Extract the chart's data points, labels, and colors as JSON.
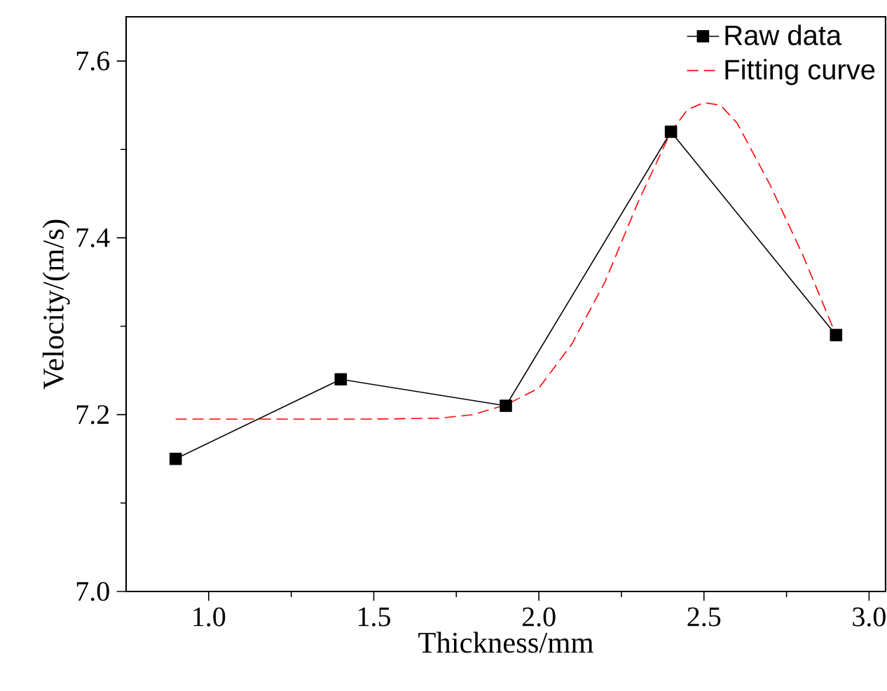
{
  "chart_data": {
    "type": "line",
    "xlabel": "Thickness/mm",
    "ylabel": "Velocity/(m/s)",
    "xlim": [
      0.75,
      3.05
    ],
    "ylim": [
      7.0,
      7.65
    ],
    "xticks": [
      {
        "value": 1.0,
        "label": "1.0"
      },
      {
        "value": 1.5,
        "label": "1.5"
      },
      {
        "value": 2.0,
        "label": "2.0"
      },
      {
        "value": 2.5,
        "label": "2.5"
      },
      {
        "value": 3.0,
        "label": "3.0"
      }
    ],
    "yticks": [
      {
        "value": 7.0,
        "label": "7.0"
      },
      {
        "value": 7.2,
        "label": "7.2"
      },
      {
        "value": 7.4,
        "label": "7.4"
      },
      {
        "value": 7.6,
        "label": "7.6"
      }
    ],
    "legend": "top right",
    "grid": false,
    "series": [
      {
        "name": "Raw data",
        "color": "#000000",
        "marker": "square",
        "line_style": "solid",
        "x": [
          0.9,
          1.4,
          1.9,
          2.4,
          2.9
        ],
        "values": [
          7.15,
          7.24,
          7.21,
          7.52,
          7.29
        ]
      },
      {
        "name": "Fitting curve",
        "color": "#ff0000",
        "marker": "none",
        "line_style": "dashed",
        "x": [
          0.9,
          1.2,
          1.5,
          1.7,
          1.8,
          1.9,
          2.0,
          2.1,
          2.2,
          2.3,
          2.4,
          2.45,
          2.5,
          2.55,
          2.6,
          2.7,
          2.8,
          2.9
        ],
        "values": [
          7.195,
          7.195,
          7.195,
          7.196,
          7.2,
          7.211,
          7.23,
          7.28,
          7.35,
          7.44,
          7.52,
          7.545,
          7.553,
          7.55,
          7.53,
          7.46,
          7.38,
          7.29
        ]
      }
    ]
  }
}
